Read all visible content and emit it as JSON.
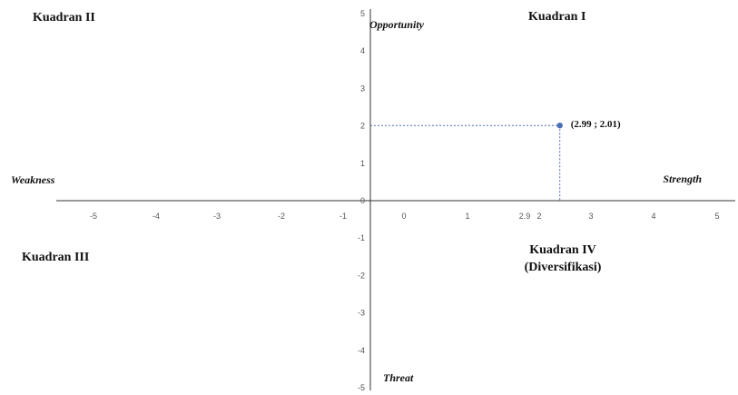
{
  "chart_data": {
    "type": "scatter",
    "title": "",
    "xlim": [
      -5,
      5
    ],
    "ylim": [
      -5,
      5
    ],
    "x_tick_labels": [
      "-5",
      "-4",
      "-3",
      "-2",
      "-1",
      "0",
      "1",
      "2.9",
      "2",
      "3",
      "4",
      "5"
    ],
    "y_tick_labels": [
      "5",
      "4",
      "3",
      "2",
      "1",
      "0",
      "-1",
      "-2",
      "-3",
      "-4",
      "-5"
    ],
    "points": [
      {
        "x": 2.99,
        "y": 2.01,
        "label": "(2.99 ; 2.01)"
      }
    ],
    "grid": false,
    "quadrant_labels": {
      "q1": "Kuadran I",
      "q2": "Kuadran II",
      "q3": "Kuadran III",
      "q4_line1": "Kuadran IV",
      "q4_line2": "(Diversifikasi)"
    },
    "axis_labels": {
      "top": "Opportunity",
      "bottom": "Threat",
      "left": "Weakness",
      "right": "Strength"
    },
    "colors": {
      "axis": "#333333",
      "point": "#4a6fb5",
      "guide": "#4a6fb5"
    }
  }
}
